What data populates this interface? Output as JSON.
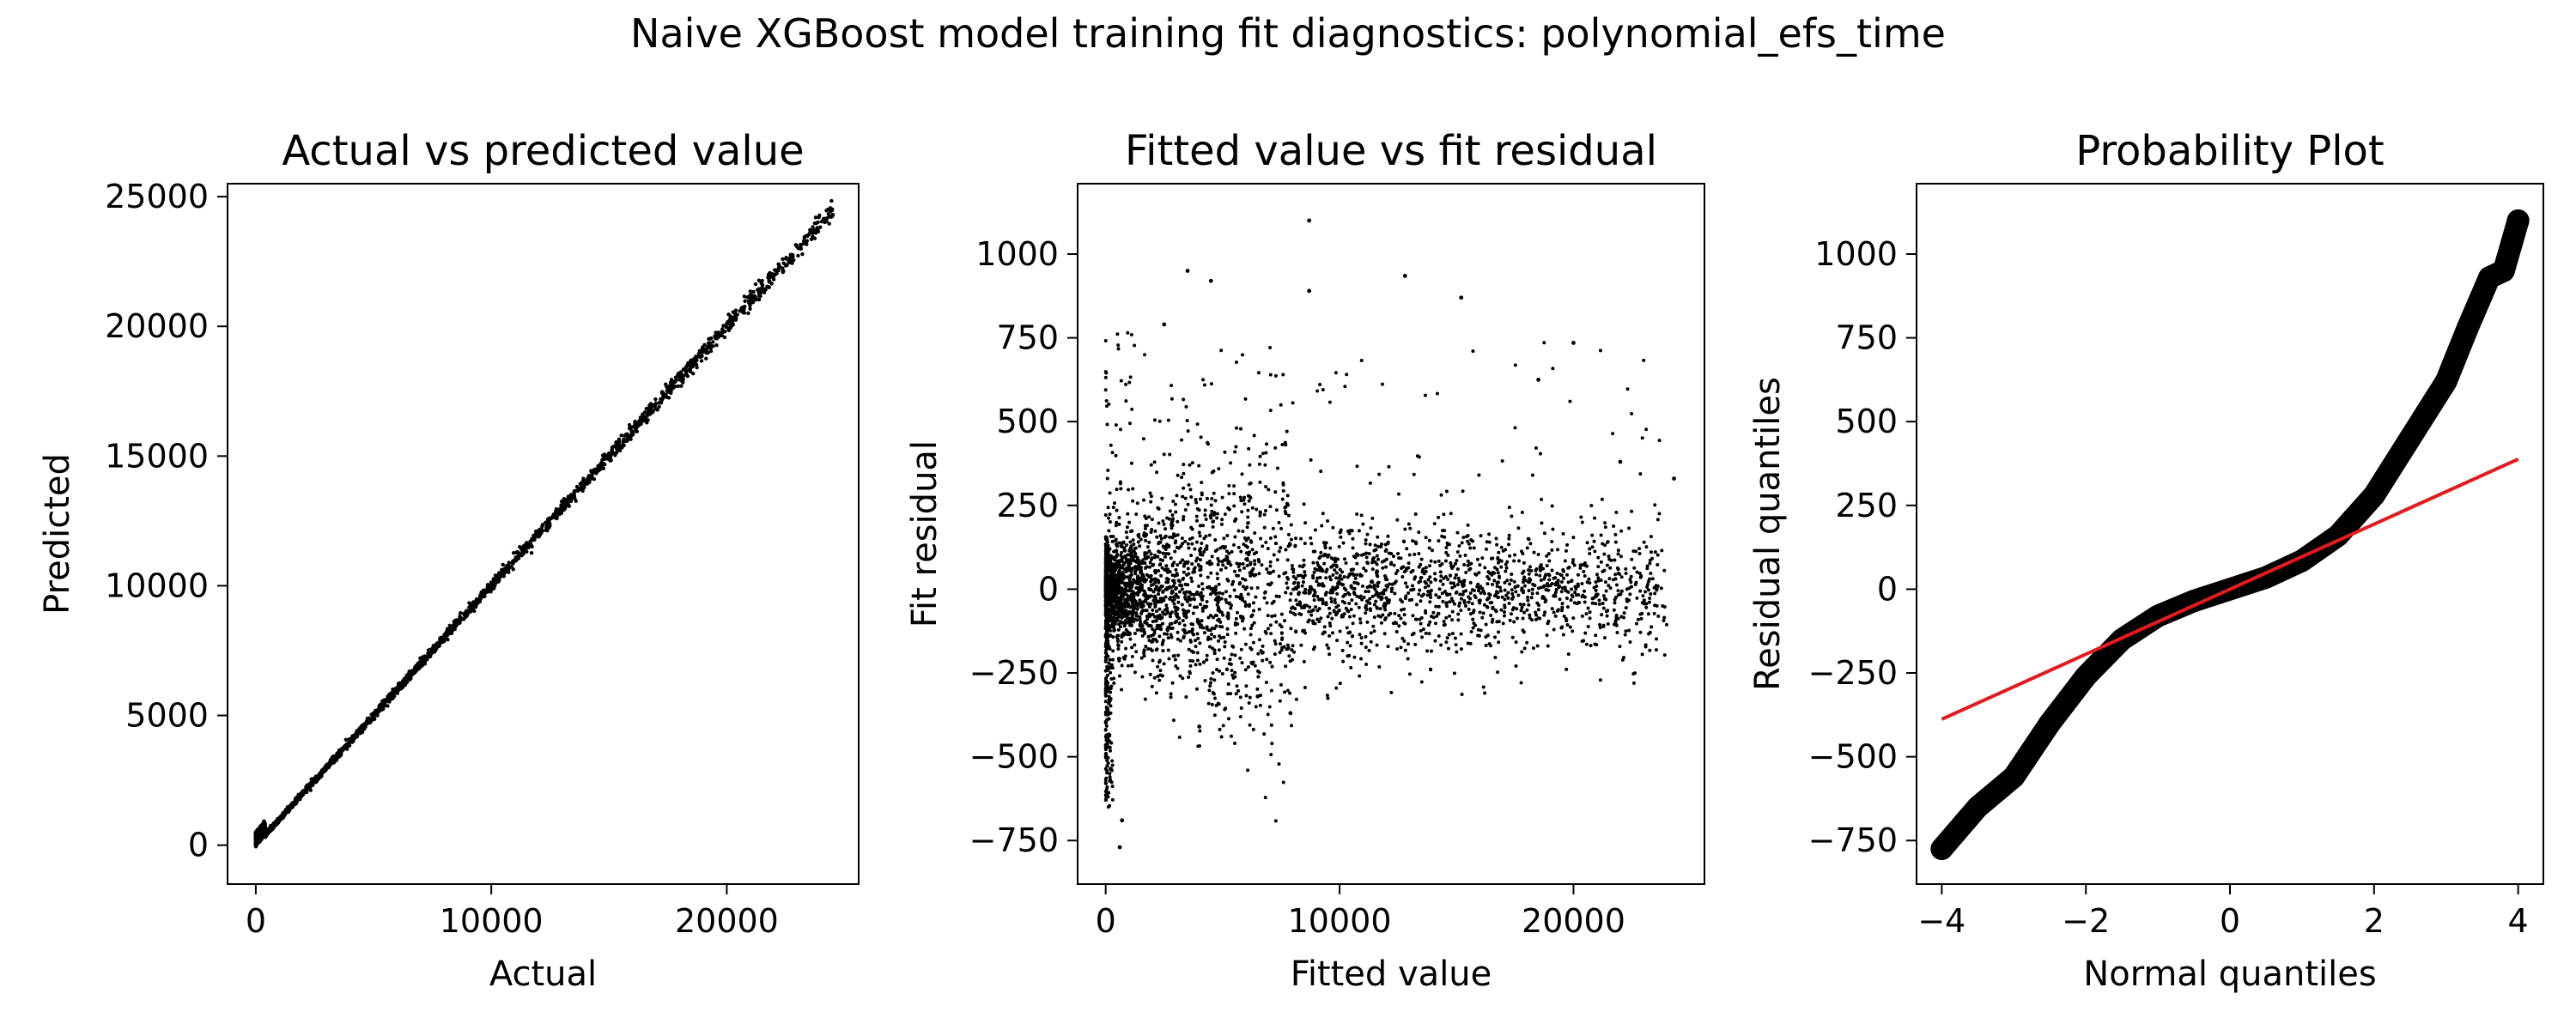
{
  "figure": {
    "suptitle": "Naive XGBoost model training fit diagnostics: polynomial_efs_time"
  },
  "chart_data": [
    {
      "type": "scatter",
      "title": "Actual vs predicted value",
      "xlabel": "Actual",
      "ylabel": "Predicted",
      "xlim": [
        -1200,
        25600
      ],
      "ylim": [
        -1500,
        25500
      ],
      "xticks": [
        0,
        10000,
        20000
      ],
      "yticks": [
        0,
        5000,
        10000,
        15000,
        20000,
        25000
      ],
      "grid": false,
      "points_description_values": {
        "relationship": "predicted ≈ actual",
        "x_range": [
          0,
          24500
        ],
        "y_range": [
          -300,
          24300
        ]
      },
      "sample_points": [
        [
          0,
          0
        ],
        [
          500,
          600
        ],
        [
          2000,
          1950
        ],
        [
          5000,
          5050
        ],
        [
          8000,
          7950
        ],
        [
          10000,
          10050
        ],
        [
          12000,
          12000
        ],
        [
          15000,
          15100
        ],
        [
          18000,
          17950
        ],
        [
          20000,
          20100
        ],
        [
          22000,
          22000
        ],
        [
          24500,
          24300
        ]
      ],
      "color": "#000000"
    },
    {
      "type": "scatter",
      "title": "Fitted value vs fit residual",
      "xlabel": "Fitted value",
      "ylabel": "Fit residual",
      "xlim": [
        -1200,
        25600
      ],
      "ylim": [
        -880,
        1210
      ],
      "xticks": [
        0,
        10000,
        20000
      ],
      "yticks": [
        -750,
        -500,
        -250,
        0,
        250,
        500,
        750,
        1000
      ],
      "grid": false,
      "sample_points": [
        [
          8700,
          1100
        ],
        [
          3500,
          950
        ],
        [
          4500,
          920
        ],
        [
          12800,
          935
        ],
        [
          15200,
          870
        ],
        [
          8700,
          890
        ],
        [
          20000,
          735
        ],
        [
          18500,
          625
        ],
        [
          2500,
          790
        ],
        [
          22000,
          380
        ],
        [
          24300,
          330
        ],
        [
          600,
          -770
        ],
        [
          700,
          -690
        ],
        [
          4000,
          -410
        ],
        [
          7900,
          -370
        ],
        [
          6500,
          -320
        ]
      ],
      "color": "#000000"
    },
    {
      "type": "scatter",
      "title": "Probability Plot",
      "xlabel": "Normal quantiles",
      "ylabel": "Residual quantiles",
      "xlim": [
        -4.35,
        4.35
      ],
      "ylim": [
        -880,
        1210
      ],
      "xticks": [
        -4,
        -2,
        0,
        2,
        4
      ],
      "yticks": [
        -750,
        -500,
        -250,
        0,
        250,
        500,
        750,
        1000
      ],
      "grid": false,
      "series": [
        {
          "kind": "points",
          "color": "#000000",
          "sample_points": [
            [
              -4.0,
              -775
            ],
            [
              -3.7,
              -700
            ],
            [
              -3.5,
              -650
            ],
            [
              -3.0,
              -560
            ],
            [
              -2.5,
              -400
            ],
            [
              -2.0,
              -260
            ],
            [
              -1.5,
              -150
            ],
            [
              -1.0,
              -80
            ],
            [
              -0.5,
              -35
            ],
            [
              0,
              0
            ],
            [
              0.5,
              35
            ],
            [
              1.0,
              85
            ],
            [
              1.5,
              160
            ],
            [
              2.0,
              280
            ],
            [
              2.5,
              450
            ],
            [
              3.0,
              620
            ],
            [
              3.3,
              780
            ],
            [
              3.6,
              930
            ],
            [
              3.8,
              950
            ],
            [
              4.0,
              1100
            ]
          ]
        },
        {
          "kind": "fit_line",
          "color": "#e41a1c",
          "x": [
            -4.0,
            4.0
          ],
          "y": [
            -388,
            388
          ]
        }
      ]
    }
  ]
}
